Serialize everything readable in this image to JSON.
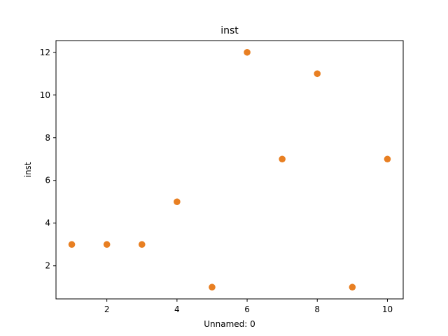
{
  "chart_data": {
    "type": "scatter",
    "title": "inst",
    "xlabel": "Unnamed: 0",
    "ylabel": "inst",
    "xlim": [
      0.55,
      10.45
    ],
    "ylim": [
      0.45,
      12.55
    ],
    "xticks": [
      2,
      4,
      6,
      8,
      10
    ],
    "yticks": [
      2,
      4,
      6,
      8,
      10,
      12
    ],
    "grid": false,
    "series": [
      {
        "color": "#e87f22",
        "points": [
          {
            "x": 1,
            "y": 3
          },
          {
            "x": 2,
            "y": 3
          },
          {
            "x": 3,
            "y": 3
          },
          {
            "x": 4,
            "y": 5
          },
          {
            "x": 5,
            "y": 1
          },
          {
            "x": 6,
            "y": 12
          },
          {
            "x": 7,
            "y": 7
          },
          {
            "x": 8,
            "y": 11
          },
          {
            "x": 9,
            "y": 1
          },
          {
            "x": 10,
            "y": 7
          }
        ]
      }
    ]
  }
}
